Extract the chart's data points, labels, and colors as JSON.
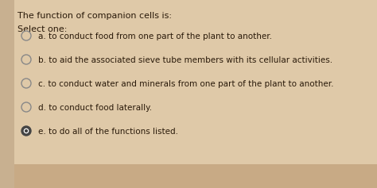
{
  "background_color": "#d4b896",
  "main_bg": "#dfc9a8",
  "bottom_bg": "#c8aa85",
  "title": "The function of companion cells is:",
  "select_one": "Select one:",
  "options": [
    {
      "letter": "a.",
      "text": "to conduct food from one part of the plant to another.",
      "selected": false
    },
    {
      "letter": "b.",
      "text": "to aid the associated sieve tube members with its cellular activities.",
      "selected": false
    },
    {
      "letter": "c.",
      "text": "to conduct water and minerals from one part of the plant to another.",
      "selected": false
    },
    {
      "letter": "d.",
      "text": "to conduct food laterally.",
      "selected": false
    },
    {
      "letter": "e.",
      "text": "to do all of the functions listed.",
      "selected": true
    }
  ],
  "text_color": "#2a1a0a",
  "circle_edge_color": "#888888",
  "selected_fill_color": "#444444",
  "font_size": 7.5,
  "title_font_size": 8.0,
  "select_one_font_size": 8.0,
  "fig_width": 4.74,
  "fig_height": 2.37,
  "dpi": 100
}
